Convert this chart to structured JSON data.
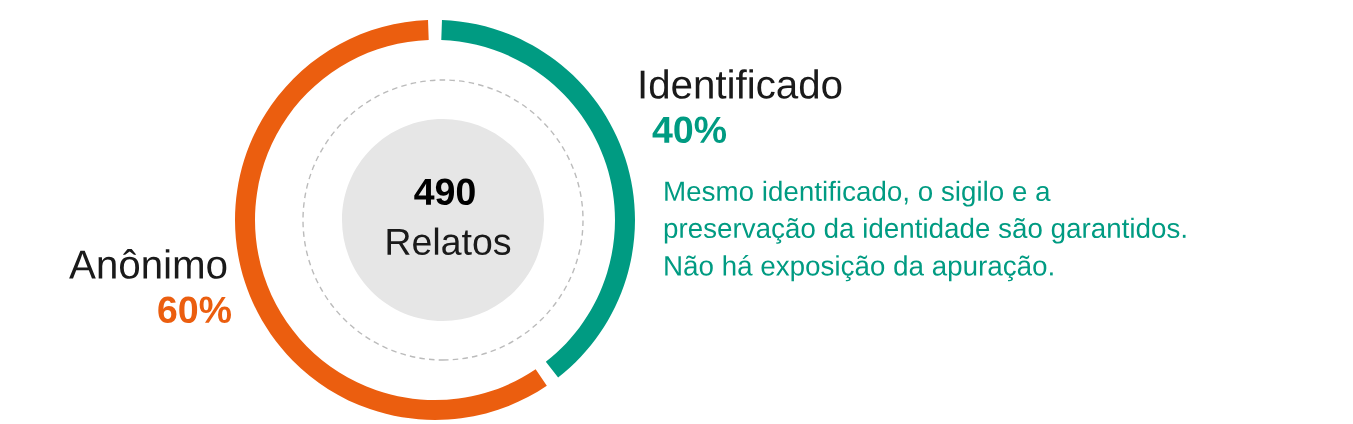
{
  "chart_data": {
    "type": "donut",
    "categories": [
      "Identificado",
      "Anônimo"
    ],
    "values": [
      40,
      60
    ],
    "colors": [
      "#009b82",
      "#eb5e0f"
    ],
    "value_labels": [
      "40%",
      "60%"
    ],
    "annotations": [
      "490",
      "Relatos",
      "Mesmo identificado, o sigilo e a\npreservação da identidade são garantidos.\nNão há exposição da apuração."
    ]
  }
}
